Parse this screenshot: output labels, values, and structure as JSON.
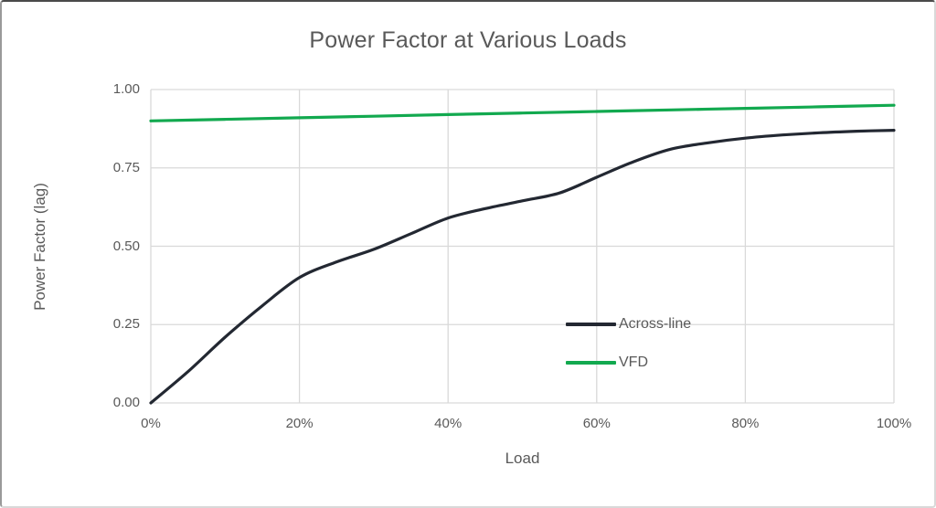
{
  "chart_data": {
    "type": "line",
    "title": "Power Factor at Various Loads",
    "xlabel": "Load",
    "ylabel": "Power Factor (lag)",
    "xlim": [
      0,
      100
    ],
    "ylim": [
      0,
      1
    ],
    "grid": true,
    "legend_position": "inside-right",
    "x_ticks": [
      "0%",
      "20%",
      "40%",
      "60%",
      "80%",
      "100%"
    ],
    "x_tick_values": [
      0,
      20,
      40,
      60,
      80,
      100
    ],
    "y_ticks": [
      "0.00",
      "0.25",
      "0.50",
      "0.75",
      "1.00"
    ],
    "y_tick_values": [
      0,
      0.25,
      0.5,
      0.75,
      1
    ],
    "series": [
      {
        "name": "Across-line",
        "color": "#232832",
        "x": [
          0,
          5,
          10,
          15,
          20,
          25,
          30,
          35,
          40,
          45,
          50,
          55,
          60,
          65,
          70,
          75,
          80,
          85,
          90,
          95,
          100
        ],
        "values": [
          0.0,
          0.1,
          0.21,
          0.31,
          0.4,
          0.45,
          0.49,
          0.54,
          0.59,
          0.62,
          0.645,
          0.67,
          0.72,
          0.77,
          0.81,
          0.83,
          0.845,
          0.855,
          0.862,
          0.867,
          0.87
        ]
      },
      {
        "name": "VFD",
        "color": "#12a94f",
        "x": [
          0,
          10,
          20,
          30,
          40,
          50,
          60,
          70,
          80,
          90,
          100
        ],
        "values": [
          0.9,
          0.905,
          0.91,
          0.915,
          0.92,
          0.925,
          0.93,
          0.935,
          0.94,
          0.945,
          0.95
        ]
      }
    ],
    "colors": {
      "text": "#595959",
      "gridline": "#d9d9d9",
      "plot_border": "#d9d9d9",
      "background": "#ffffff"
    }
  }
}
